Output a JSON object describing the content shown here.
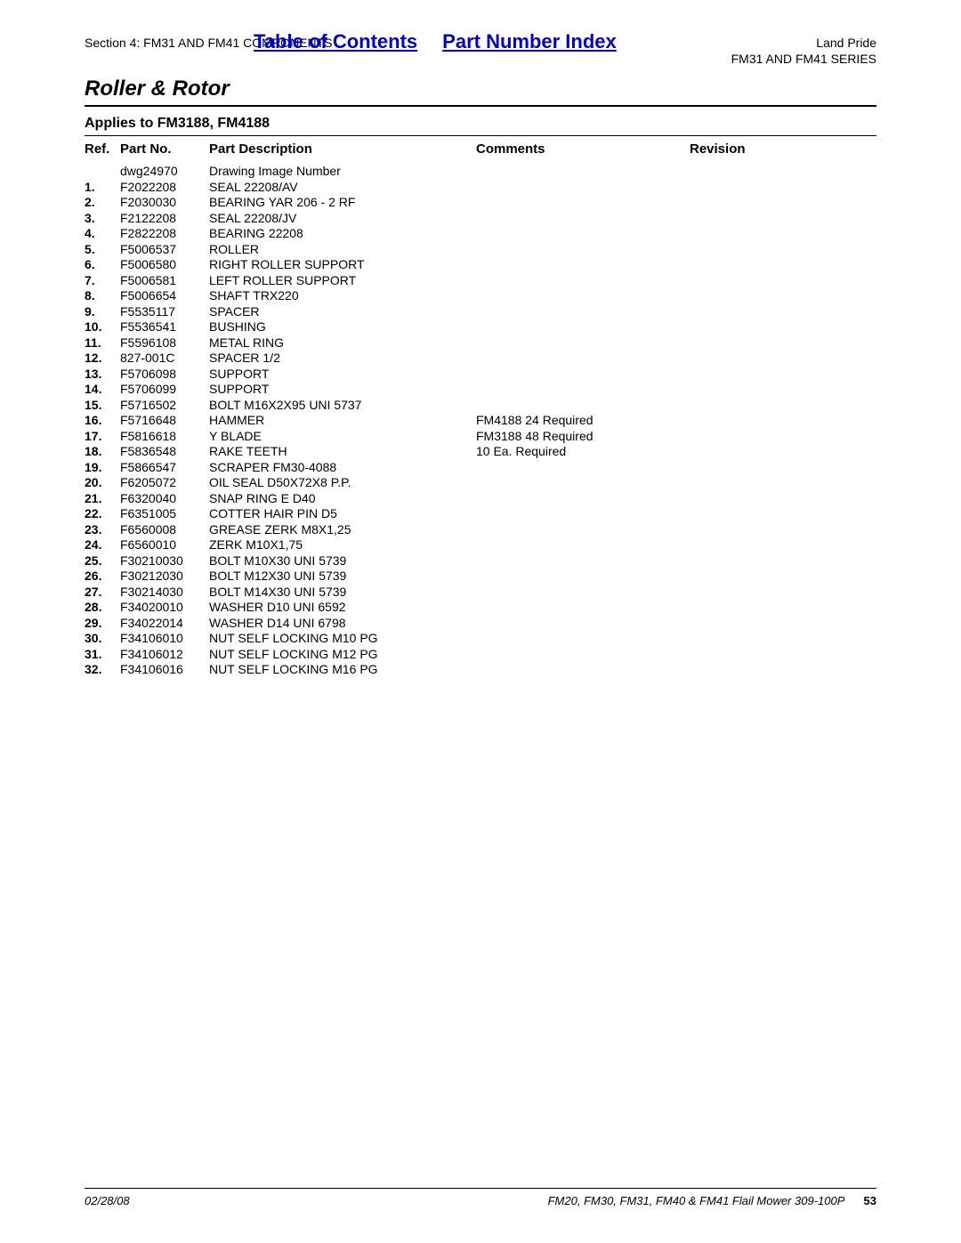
{
  "header": {
    "section_label": "Section 4: FM31 AND FM41 COMPONENTS",
    "toc_link": "Table of Contents",
    "pni_link": "Part Number Index",
    "brand": "Land Pride",
    "series": "FM31 AND FM41 SERIES"
  },
  "title": "Roller & Rotor",
  "applies": "Applies to FM3188, FM4188",
  "columns": {
    "ref": "Ref.",
    "part_no": "Part No.",
    "part_desc": "Part Description",
    "comments": "Comments",
    "revision": "Revision"
  },
  "rows": [
    {
      "ref": "",
      "part_no": "dwg24970",
      "desc": "Drawing Image Number",
      "comm": "",
      "rev": ""
    },
    {
      "ref": "1.",
      "part_no": "F2022208",
      "desc": "SEAL 22208/AV",
      "comm": "",
      "rev": ""
    },
    {
      "ref": "2.",
      "part_no": "F2030030",
      "desc": "BEARING YAR 206 - 2 RF",
      "comm": "",
      "rev": ""
    },
    {
      "ref": "3.",
      "part_no": "F2122208",
      "desc": "SEAL 22208/JV",
      "comm": "",
      "rev": ""
    },
    {
      "ref": "4.",
      "part_no": "F2822208",
      "desc": "BEARING 22208",
      "comm": "",
      "rev": ""
    },
    {
      "ref": "5.",
      "part_no": "F5006537",
      "desc": "ROLLER",
      "comm": "",
      "rev": ""
    },
    {
      "ref": "6.",
      "part_no": "F5006580",
      "desc": "RIGHT ROLLER SUPPORT",
      "comm": "",
      "rev": ""
    },
    {
      "ref": "7.",
      "part_no": "F5006581",
      "desc": "LEFT ROLLER SUPPORT",
      "comm": "",
      "rev": ""
    },
    {
      "ref": "8.",
      "part_no": "F5006654",
      "desc": "SHAFT TRX220",
      "comm": "",
      "rev": ""
    },
    {
      "ref": "9.",
      "part_no": "F5535117",
      "desc": "SPACER",
      "comm": "",
      "rev": ""
    },
    {
      "ref": "10.",
      "part_no": "F5536541",
      "desc": "BUSHING",
      "comm": "",
      "rev": ""
    },
    {
      "ref": "11.",
      "part_no": "F5596108",
      "desc": "METAL RING",
      "comm": "",
      "rev": ""
    },
    {
      "ref": "12.",
      "part_no": "827-001C",
      "desc": "SPACER 1/2",
      "comm": "",
      "rev": ""
    },
    {
      "ref": "13.",
      "part_no": "F5706098",
      "desc": "SUPPORT",
      "comm": "",
      "rev": ""
    },
    {
      "ref": "14.",
      "part_no": "F5706099",
      "desc": "SUPPORT",
      "comm": "",
      "rev": ""
    },
    {
      "ref": "15.",
      "part_no": "F5716502",
      "desc": "BOLT M16X2X95 UNI 5737",
      "comm": "",
      "rev": ""
    },
    {
      "ref": "16.",
      "part_no": "F5716648",
      "desc": "HAMMER",
      "comm": "FM4188 24 Required",
      "rev": ""
    },
    {
      "ref": "17.",
      "part_no": "F5816618",
      "desc": "Y BLADE",
      "comm": "FM3188 48 Required",
      "rev": ""
    },
    {
      "ref": "18.",
      "part_no": "F5836548",
      "desc": "RAKE TEETH",
      "comm": "10 Ea. Required",
      "rev": ""
    },
    {
      "ref": "19.",
      "part_no": "F5866547",
      "desc": "SCRAPER FM30-4088",
      "comm": "",
      "rev": ""
    },
    {
      "ref": "20.",
      "part_no": "F6205072",
      "desc": "OIL SEAL D50X72X8 P.P.",
      "comm": "",
      "rev": ""
    },
    {
      "ref": "21.",
      "part_no": "F6320040",
      "desc": "SNAP RING E D40",
      "comm": "",
      "rev": ""
    },
    {
      "ref": "22.",
      "part_no": "F6351005",
      "desc": "COTTER HAIR PIN D5",
      "comm": "",
      "rev": ""
    },
    {
      "ref": "23.",
      "part_no": "F6560008",
      "desc": "GREASE ZERK M8X1,25",
      "comm": "",
      "rev": ""
    },
    {
      "ref": "24.",
      "part_no": "F6560010",
      "desc": "ZERK M10X1,75",
      "comm": "",
      "rev": ""
    },
    {
      "ref": "25.",
      "part_no": "F30210030",
      "desc": "BOLT M10X30 UNI 5739",
      "comm": "",
      "rev": ""
    },
    {
      "ref": "26.",
      "part_no": "F30212030",
      "desc": "BOLT M12X30 UNI 5739",
      "comm": "",
      "rev": ""
    },
    {
      "ref": "27.",
      "part_no": "F30214030",
      "desc": "BOLT M14X30 UNI 5739",
      "comm": "",
      "rev": ""
    },
    {
      "ref": "28.",
      "part_no": "F34020010",
      "desc": "WASHER D10 UNI 6592",
      "comm": "",
      "rev": ""
    },
    {
      "ref": "29.",
      "part_no": "F34022014",
      "desc": "WASHER D14 UNI 6798",
      "comm": "",
      "rev": ""
    },
    {
      "ref": "30.",
      "part_no": "F34106010",
      "desc": "NUT SELF LOCKING M10 PG",
      "comm": "",
      "rev": ""
    },
    {
      "ref": "31.",
      "part_no": "F34106012",
      "desc": "NUT SELF LOCKING M12 PG",
      "comm": "",
      "rev": ""
    },
    {
      "ref": "32.",
      "part_no": "F34106016",
      "desc": "NUT SELF LOCKING M16 PG",
      "comm": "",
      "rev": ""
    }
  ],
  "footer": {
    "date": "02/28/08",
    "doc": "FM20, FM30, FM31, FM40 & FM41 Flail Mower 309-100P",
    "page": "53"
  }
}
